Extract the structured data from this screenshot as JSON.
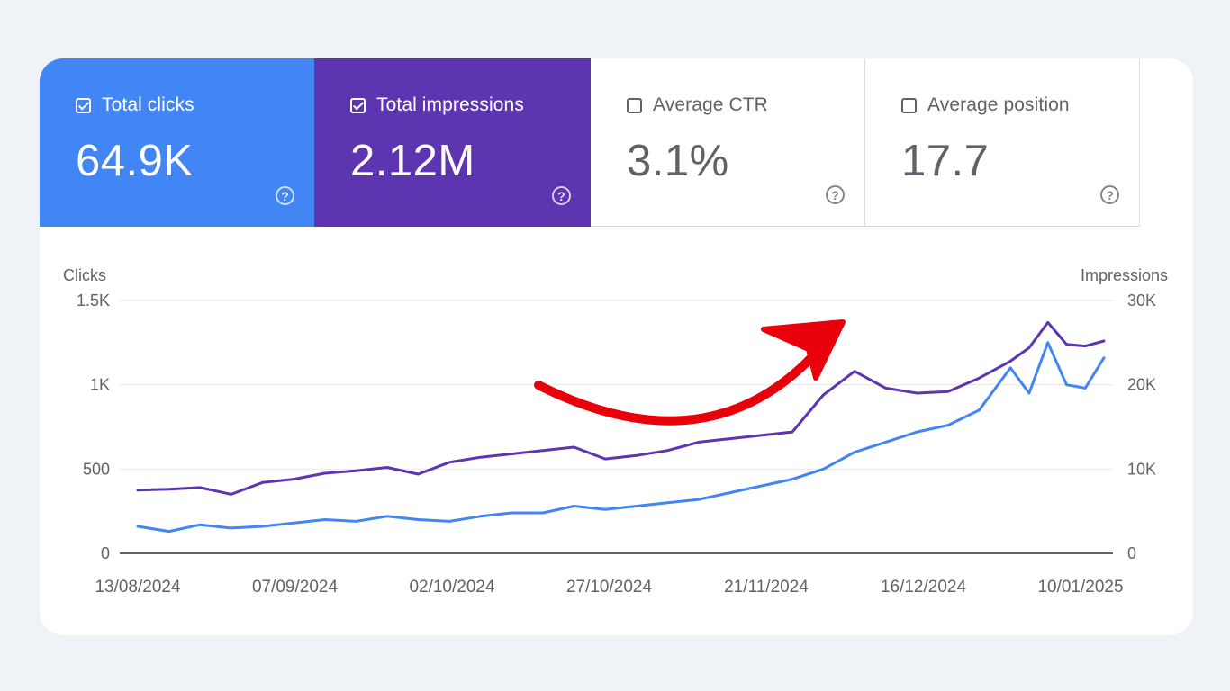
{
  "metrics": [
    {
      "label": "Total clicks",
      "value": "64.9K",
      "checked": true,
      "color": "#4285f4"
    },
    {
      "label": "Total impressions",
      "value": "2.12M",
      "checked": true,
      "color": "#5e35b1"
    },
    {
      "label": "Average CTR",
      "value": "3.1%",
      "checked": false
    },
    {
      "label": "Average position",
      "value": "17.7",
      "checked": false
    }
  ],
  "help_glyph": "?",
  "chart_data": {
    "type": "line",
    "left_axis_label": "Clicks",
    "right_axis_label": "Impressions",
    "left_ticks": [
      "1.5K",
      "1K",
      "500",
      "0"
    ],
    "right_ticks": [
      "30K",
      "20K",
      "10K",
      "0"
    ],
    "left_ylim": [
      0,
      1500
    ],
    "right_ylim": [
      0,
      30000
    ],
    "x_tick_labels": [
      "13/08/2024",
      "07/09/2024",
      "02/10/2024",
      "27/10/2024",
      "21/11/2024",
      "16/12/2024",
      "10/01/2025"
    ],
    "x_range": [
      "2024-08-13",
      "2025-01-15"
    ],
    "grid": true,
    "annotation": "red curved arrow pointing up-right",
    "series": [
      {
        "name": "Total clicks",
        "axis": "left",
        "color": "#4285f4",
        "points": [
          [
            "2024-08-13",
            160
          ],
          [
            "2024-08-18",
            130
          ],
          [
            "2024-08-23",
            170
          ],
          [
            "2024-08-28",
            150
          ],
          [
            "2024-09-02",
            160
          ],
          [
            "2024-09-07",
            180
          ],
          [
            "2024-09-12",
            200
          ],
          [
            "2024-09-17",
            190
          ],
          [
            "2024-09-22",
            220
          ],
          [
            "2024-09-27",
            200
          ],
          [
            "2024-10-02",
            190
          ],
          [
            "2024-10-07",
            220
          ],
          [
            "2024-10-12",
            240
          ],
          [
            "2024-10-17",
            240
          ],
          [
            "2024-10-22",
            280
          ],
          [
            "2024-10-27",
            260
          ],
          [
            "2024-11-01",
            280
          ],
          [
            "2024-11-06",
            300
          ],
          [
            "2024-11-11",
            320
          ],
          [
            "2024-11-16",
            360
          ],
          [
            "2024-11-21",
            400
          ],
          [
            "2024-11-26",
            440
          ],
          [
            "2024-12-01",
            500
          ],
          [
            "2024-12-06",
            600
          ],
          [
            "2024-12-11",
            660
          ],
          [
            "2024-12-16",
            720
          ],
          [
            "2024-12-21",
            760
          ],
          [
            "2024-12-26",
            850
          ],
          [
            "2024-12-31",
            1100
          ],
          [
            "2025-01-03",
            950
          ],
          [
            "2025-01-06",
            1250
          ],
          [
            "2025-01-09",
            1000
          ],
          [
            "2025-01-12",
            980
          ],
          [
            "2025-01-15",
            1160
          ]
        ]
      },
      {
        "name": "Total impressions",
        "axis": "right",
        "color": "#5e35b1",
        "points": [
          [
            "2024-08-13",
            7500
          ],
          [
            "2024-08-18",
            7600
          ],
          [
            "2024-08-23",
            7800
          ],
          [
            "2024-08-28",
            7000
          ],
          [
            "2024-09-02",
            8400
          ],
          [
            "2024-09-07",
            8800
          ],
          [
            "2024-09-12",
            9500
          ],
          [
            "2024-09-17",
            9800
          ],
          [
            "2024-09-22",
            10200
          ],
          [
            "2024-09-27",
            9400
          ],
          [
            "2024-10-02",
            10800
          ],
          [
            "2024-10-07",
            11400
          ],
          [
            "2024-10-12",
            11800
          ],
          [
            "2024-10-17",
            12200
          ],
          [
            "2024-10-22",
            12600
          ],
          [
            "2024-10-27",
            11200
          ],
          [
            "2024-11-01",
            11600
          ],
          [
            "2024-11-06",
            12200
          ],
          [
            "2024-11-11",
            13200
          ],
          [
            "2024-11-16",
            13600
          ],
          [
            "2024-11-21",
            14000
          ],
          [
            "2024-11-26",
            14400
          ],
          [
            "2024-12-01",
            18800
          ],
          [
            "2024-12-06",
            21600
          ],
          [
            "2024-12-11",
            19600
          ],
          [
            "2024-12-16",
            19000
          ],
          [
            "2024-12-21",
            19200
          ],
          [
            "2024-12-26",
            20800
          ],
          [
            "2024-12-31",
            22800
          ],
          [
            "2025-01-03",
            24400
          ],
          [
            "2025-01-06",
            27400
          ],
          [
            "2025-01-09",
            24800
          ],
          [
            "2025-01-12",
            24600
          ],
          [
            "2025-01-15",
            25200
          ]
        ]
      }
    ]
  }
}
